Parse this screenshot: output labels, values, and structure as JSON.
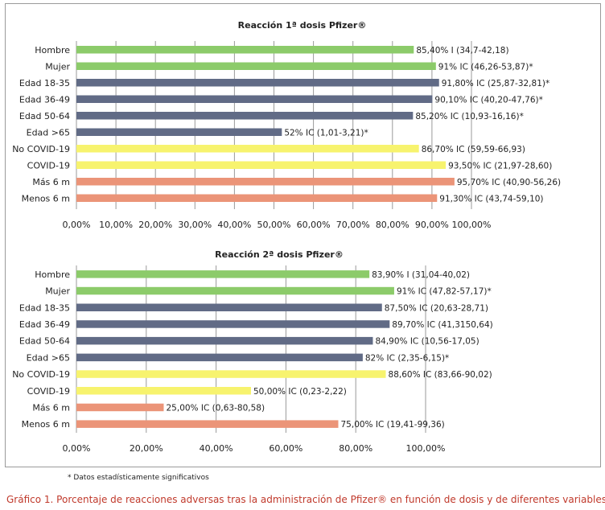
{
  "colors": {
    "green": "#8ccb6a",
    "slate": "#616b86",
    "yellow": "#f7f36e",
    "salmon": "#eb9478",
    "grid": "#9a9a9a",
    "caption": "#c0392b"
  },
  "footnote": "* Datos estadísticamente significativos",
  "caption": "Gráfico 1. Porcentaje de reacciones adversas tras la administración de Pfizer® en función de dosis y de diferentes variables",
  "chart_data": [
    {
      "type": "bar",
      "orientation": "horizontal",
      "title": "Reacción 1ª dosis Pfizer®",
      "xlim": [
        0,
        100
      ],
      "x_ticks": [
        "0,00%",
        "10,00%",
        "20,00%",
        "30,00%",
        "40,00%",
        "50,00%",
        "60,00%",
        "70,00%",
        "80,00%",
        "90,00%",
        "100,00%"
      ],
      "grid": true,
      "categories": [
        "Hombre",
        "Mujer",
        "Edad 18-35",
        "Edad 36-49",
        "Edad 50-64",
        "Edad >65",
        "No COVID-19",
        "COVID-19",
        "Más 6 m",
        "Menos 6 m"
      ],
      "values": [
        85.4,
        91,
        91.8,
        90.1,
        85.2,
        52,
        86.7,
        93.5,
        95.7,
        91.3
      ],
      "bar_colors": [
        "green",
        "green",
        "slate",
        "slate",
        "slate",
        "slate",
        "yellow",
        "yellow",
        "salmon",
        "salmon"
      ],
      "data_labels": [
        "85,40% I (34,7-42,18)",
        "91% IC (46,26-53,87)*",
        "91,80% IC (25,87-32,81)*",
        "90,10% IC (40,20-47,76)*",
        "85,20% IC (10,93-16,16)*",
        "52% IC (1,01-3,21)*",
        "86,70% IC (59,59-66,93)",
        "93,50% IC (21,97-28,60)",
        "95,70% IC (40,90-56,26)",
        "91,30% IC (43,74-59,10)"
      ]
    },
    {
      "type": "bar",
      "orientation": "horizontal",
      "title": "Reacción 2ª dosis Pfizer®",
      "xlim": [
        0,
        100
      ],
      "x_ticks": [
        "0,00%",
        "20,00%",
        "40,00%",
        "60,00%",
        "80,00%",
        "100,00%"
      ],
      "grid": true,
      "categories": [
        "Hombre",
        "Mujer",
        "Edad 18-35",
        "Edad 36-49",
        "Edad 50-64",
        "Edad >65",
        "No COVID-19",
        "COVID-19",
        "Más 6 m",
        "Menos 6 m"
      ],
      "values": [
        83.9,
        91,
        87.5,
        89.7,
        84.9,
        82,
        88.6,
        50,
        25,
        75
      ],
      "bar_colors": [
        "green",
        "green",
        "slate",
        "slate",
        "slate",
        "slate",
        "yellow",
        "yellow",
        "salmon",
        "salmon"
      ],
      "data_labels": [
        "83,90% I (31,04-40,02)",
        "91% IC (47,82-57,17)*",
        "87,50% IC (20,63-28,71)",
        "89,70% IC (41,3150,64)",
        "84,90% IC (10,56-17,05)",
        "82% IC (2,35-6,15)*",
        "88,60% IC (83,66-90,02)",
        "50,00% IC (0,23-2,22)",
        "25,00% IC (0,63-80,58)",
        "75,00% IC (19,41-99,36)"
      ]
    }
  ]
}
